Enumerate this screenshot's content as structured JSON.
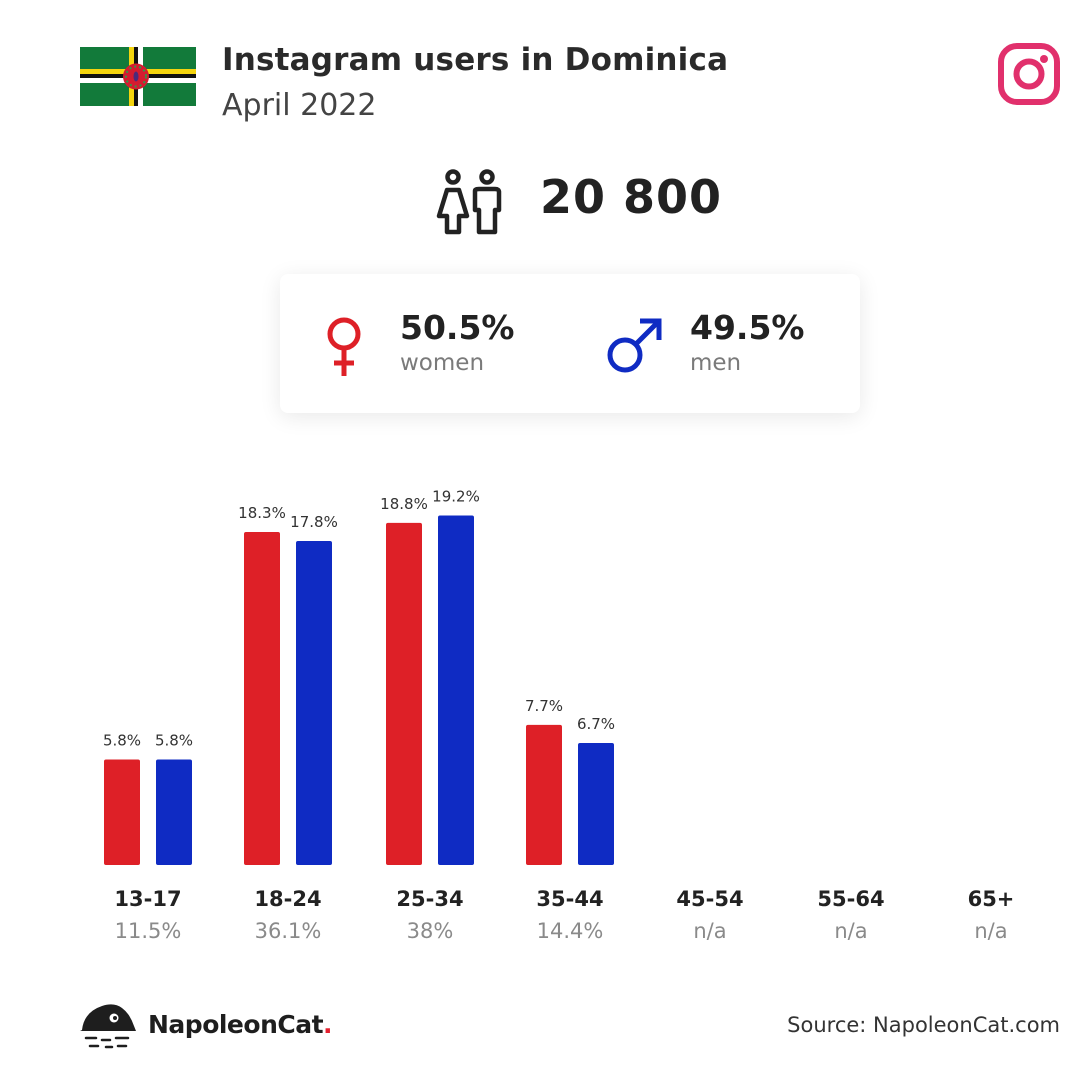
{
  "header": {
    "title": "Instagram users in Dominica",
    "subtitle": "April 2022"
  },
  "colors": {
    "women": "#de2027",
    "men": "#0f2bc3",
    "instagram": "#e1306c",
    "flag_green": "#127a3a",
    "flag_red": "#d41c30"
  },
  "icons": {
    "flag": "dominica-flag-icon",
    "brand": "instagram-icon",
    "total": "people-icon",
    "women": "female-symbol-icon",
    "men": "male-symbol-icon",
    "footer": "napoleoncat-logo-icon"
  },
  "summary": {
    "total_users": "20 800",
    "women": {
      "pct": "50.5%",
      "label": "women"
    },
    "men": {
      "pct": "49.5%",
      "label": "men"
    }
  },
  "chart_data": {
    "type": "bar",
    "categories": [
      "13-17",
      "18-24",
      "25-34",
      "35-44",
      "45-54",
      "55-64",
      "65+"
    ],
    "totals": [
      "11.5%",
      "36.1%",
      "38%",
      "14.4%",
      "n/a",
      "n/a",
      "n/a"
    ],
    "series": [
      {
        "name": "women",
        "values": [
          5.8,
          18.3,
          18.8,
          7.7,
          null,
          null,
          null
        ],
        "labels": [
          "5.8%",
          "18.3%",
          "18.8%",
          "7.7%",
          null,
          null,
          null
        ]
      },
      {
        "name": "men",
        "values": [
          5.8,
          17.8,
          19.2,
          6.7,
          null,
          null,
          null
        ],
        "labels": [
          "5.8%",
          "17.8%",
          "19.2%",
          "6.7%",
          null,
          null,
          null
        ]
      }
    ],
    "grid": false
  },
  "footer": {
    "brand_name": "NapoleonCat",
    "brand_dot": ".",
    "source": "Source: NapoleonCat.com"
  }
}
